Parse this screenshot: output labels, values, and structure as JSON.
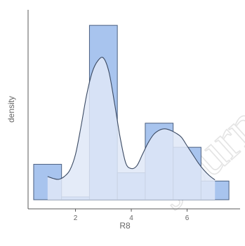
{
  "chart_data": {
    "type": "histogram",
    "xlabel": "R8",
    "ylabel": "density",
    "xlim": [
      0.3,
      7.9
    ],
    "ylim": [
      0,
      0.65
    ],
    "xticks": [
      2,
      4,
      6
    ],
    "yticks": [],
    "grid": false,
    "legend": "none",
    "bins": [
      {
        "x0": 0.5,
        "x1": 1.5,
        "density": 0.125
      },
      {
        "x0": 1.5,
        "x1": 2.5,
        "density": 0.01
      },
      {
        "x0": 2.5,
        "x1": 3.5,
        "density": 0.615
      },
      {
        "x0": 3.5,
        "x1": 4.5,
        "density": 0.095
      },
      {
        "x0": 4.5,
        "x1": 5.5,
        "density": 0.27
      },
      {
        "x0": 5.5,
        "x1": 6.5,
        "density": 0.185
      },
      {
        "x0": 6.5,
        "x1": 7.5,
        "density": 0.066
      }
    ],
    "density_curve": {
      "x": [
        1.0,
        1.2,
        1.4,
        1.6,
        1.8,
        2.0,
        2.2,
        2.4,
        2.6,
        2.8,
        3.0,
        3.2,
        3.4,
        3.6,
        3.8,
        4.0,
        4.2,
        4.4,
        4.6,
        4.8,
        5.0,
        5.2,
        5.4,
        5.6,
        5.8,
        6.0,
        6.2,
        6.4,
        6.6,
        6.8,
        7.0
      ],
      "y": [
        0.082,
        0.075,
        0.072,
        0.082,
        0.105,
        0.16,
        0.26,
        0.37,
        0.45,
        0.49,
        0.5,
        0.45,
        0.34,
        0.22,
        0.13,
        0.11,
        0.12,
        0.16,
        0.2,
        0.23,
        0.245,
        0.25,
        0.245,
        0.235,
        0.22,
        0.19,
        0.16,
        0.13,
        0.105,
        0.085,
        0.07
      ]
    },
    "colors": {
      "bar_fill": "#a8c4ee",
      "bar_stroke": "#4a5f80",
      "density_fill": "#dfe8f7",
      "density_line": "#3b4a63",
      "axis": "#5a5a5a"
    }
  },
  "watermark": "Journal"
}
